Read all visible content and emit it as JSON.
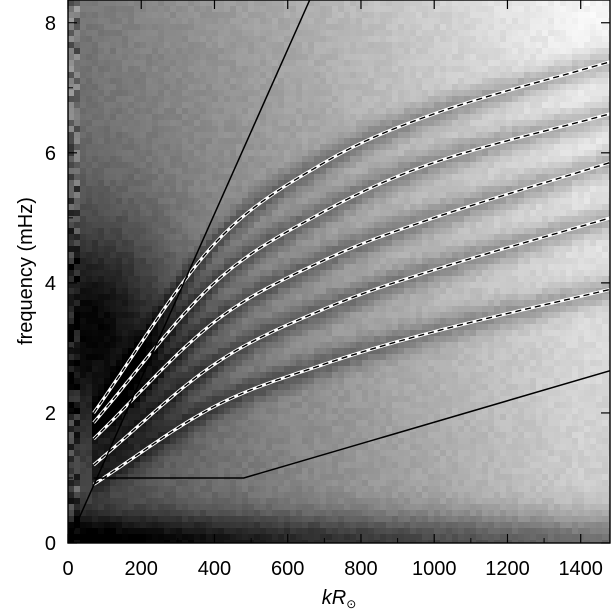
{
  "chart_data": {
    "type": "heatmap",
    "title": "",
    "xlabel": "kR⊙",
    "xlabel_parts": {
      "main": "kR",
      "subscript": "⊙"
    },
    "ylabel": "frequency (mHz)",
    "xlim": [
      0,
      1480
    ],
    "ylim": [
      0,
      8.35
    ],
    "x_ticks": [
      0,
      200,
      400,
      600,
      800,
      1000,
      1200,
      1400
    ],
    "x_tick_labels": [
      "0",
      "200",
      "400",
      "600",
      "800",
      "1000",
      "1200",
      "1400"
    ],
    "y_ticks": [
      0,
      2,
      4,
      6,
      8
    ],
    "y_tick_labels": [
      "0",
      "2",
      "4",
      "6",
      "8"
    ],
    "colormap": "grayscale (black = high power, white = low power)",
    "ridge_curves": [
      {
        "style": "dashed",
        "x": [
          70,
          400,
          700,
          1000,
          1480
        ],
        "y": [
          0.9,
          2.1,
          2.75,
          3.25,
          3.9
        ]
      },
      {
        "style": "dashed",
        "x": [
          70,
          400,
          700,
          1000,
          1480
        ],
        "y": [
          1.2,
          2.75,
          3.6,
          4.2,
          5.0
        ]
      },
      {
        "style": "dashed",
        "x": [
          70,
          400,
          700,
          1000,
          1480
        ],
        "y": [
          1.6,
          3.4,
          4.35,
          5.0,
          5.85
        ]
      },
      {
        "style": "dashed",
        "x": [
          70,
          400,
          700,
          1000,
          1480
        ],
        "y": [
          1.85,
          4.0,
          5.1,
          5.85,
          6.6
        ]
      },
      {
        "style": "dashed",
        "x": [
          70,
          400,
          700,
          1000,
          1480
        ],
        "y": [
          2.0,
          4.6,
          5.85,
          6.6,
          7.4
        ]
      }
    ],
    "boundary_lines": [
      {
        "style": "solid",
        "x": [
          0,
          660
        ],
        "y": [
          0,
          8.35
        ]
      },
      {
        "style": "solid",
        "x": [
          70,
          480,
          1480
        ],
        "y": [
          1.0,
          1.0,
          2.65
        ]
      }
    ],
    "legend": "none",
    "grid": false
  }
}
